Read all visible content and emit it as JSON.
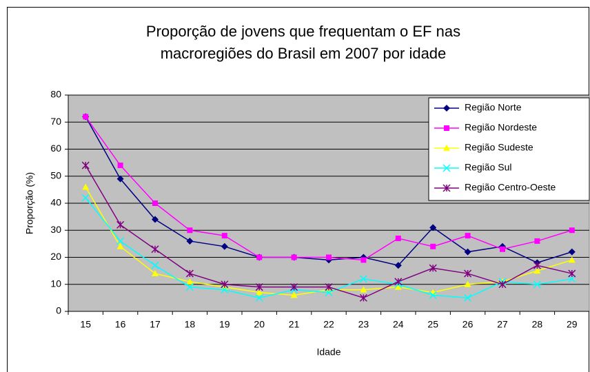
{
  "chart_data": {
    "type": "line",
    "title": [
      "Proporção de jovens que frequentam o EF nas",
      "macroregiões do Brasil em 2007 por idade"
    ],
    "xlabel": "Idade",
    "ylabel": "Proporção (%)",
    "categories": [
      15,
      16,
      17,
      18,
      19,
      20,
      21,
      22,
      23,
      24,
      25,
      26,
      27,
      28,
      29
    ],
    "ylim": [
      0,
      80
    ],
    "yticks": [
      0,
      10,
      20,
      30,
      40,
      50,
      60,
      70,
      80
    ],
    "grid": true,
    "legend": "upper right",
    "series": [
      {
        "name": "Região Norte",
        "color": "#000080",
        "marker": "diamond",
        "values": [
          72,
          49,
          34,
          26,
          24,
          20,
          20,
          19,
          20,
          17,
          31,
          22,
          24,
          18,
          22
        ]
      },
      {
        "name": "Região Nordeste",
        "color": "#ff00ff",
        "marker": "square",
        "values": [
          72,
          54,
          40,
          30,
          28,
          20,
          20,
          20,
          19,
          27,
          24,
          28,
          23,
          26,
          30
        ]
      },
      {
        "name": "Região Sudeste",
        "color": "#ffff00",
        "marker": "triangle",
        "values": [
          46,
          24,
          14,
          11,
          9,
          7,
          6,
          8,
          8,
          9,
          7,
          10,
          11,
          15,
          19
        ]
      },
      {
        "name": "Região Sul",
        "color": "#00ffff",
        "marker": "x",
        "values": [
          42,
          26,
          17,
          9,
          8,
          5,
          8,
          7,
          12,
          10,
          6,
          5,
          11,
          10,
          12
        ]
      },
      {
        "name": "Região Centro-Oeste",
        "color": "#800080",
        "marker": "star",
        "values": [
          54,
          32,
          23,
          14,
          10,
          9,
          9,
          9,
          5,
          11,
          16,
          14,
          10,
          17,
          14
        ]
      }
    ]
  }
}
